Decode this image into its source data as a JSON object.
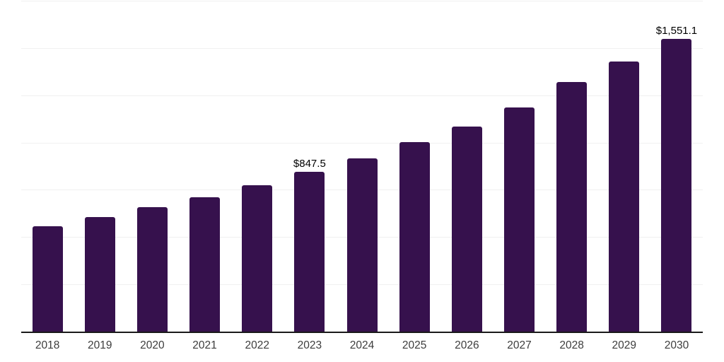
{
  "chart_data": {
    "type": "bar",
    "title": "",
    "xlabel": "",
    "ylabel": "",
    "categories": [
      "2018",
      "2019",
      "2020",
      "2021",
      "2022",
      "2023",
      "2024",
      "2025",
      "2026",
      "2027",
      "2028",
      "2029",
      "2030"
    ],
    "values": [
      562,
      609,
      661,
      715,
      778,
      847.5,
      920,
      1007,
      1090,
      1190,
      1324,
      1432,
      1551.1
    ],
    "point_labels": [
      "",
      "",
      "",
      "",
      "",
      "$847.5",
      "",
      "",
      "",
      "",
      "",
      "",
      "$1,551.1"
    ],
    "ylim": [
      0,
      1750
    ],
    "gridline_step": 250,
    "grid": "on",
    "y_tick_labels_visible": false,
    "legend": "none",
    "currency_prefix": "$"
  },
  "colors": {
    "background": "#ffffff",
    "bar": "#36114d",
    "gridline": "#f0f0f0",
    "axis_line": "#1a1a1a",
    "tick_label": "#3d3d3d",
    "value_label": "#000000"
  }
}
